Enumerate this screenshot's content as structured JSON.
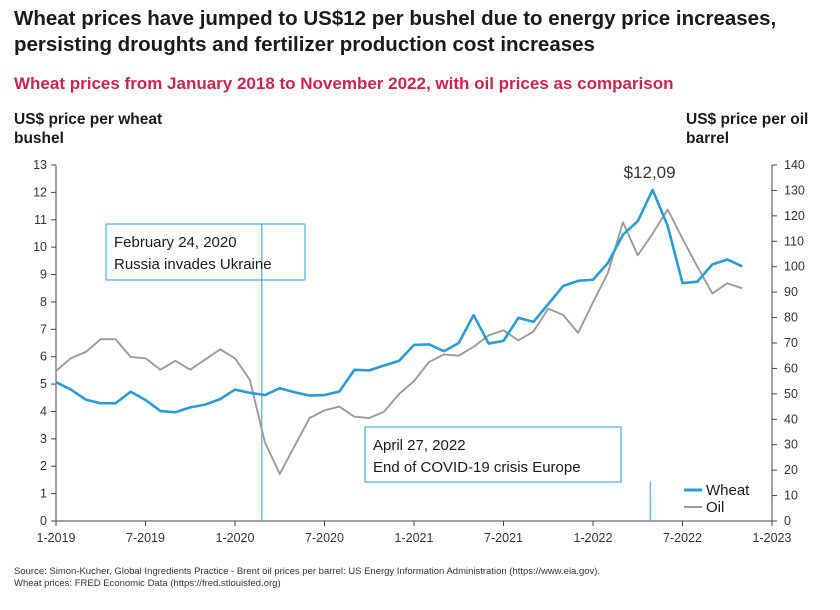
{
  "header": {
    "title": "Wheat prices have jumped to US$12 per bushel due to energy price increases, persisting droughts and fertilizer production cost increases",
    "subtitle": "Wheat prices from January 2018 to November 2022, with oil prices as comparison"
  },
  "chart_data": {
    "type": "line",
    "title": "Wheat prices from January 2018 to November 2022, with oil prices as comparison",
    "ylabel_left": "US$ price per wheat bushel",
    "ylabel_right": "US$ price per oil barrel",
    "x_ticks": [
      "1-2019",
      "7-2019",
      "1-2020",
      "7-2020",
      "1-2021",
      "7-2021",
      "1-2022",
      "7-2022",
      "1-2023"
    ],
    "ylim_left": [
      0,
      13
    ],
    "ylim_right": [
      0,
      140
    ],
    "y_ticks_left": [
      "0",
      "1",
      "2",
      "3",
      "4",
      "5",
      "6",
      "7",
      "8",
      "9",
      "10",
      "11",
      "12",
      "13"
    ],
    "y_ticks_right": [
      "0",
      "10",
      "20",
      "30",
      "40",
      "50",
      "60",
      "70",
      "80",
      "90",
      "100",
      "110",
      "120",
      "130",
      "140"
    ],
    "series": [
      {
        "name": "Wheat",
        "axis": "left",
        "color": "#2b9bd5",
        "points": [
          [
            2019.0,
            5.07
          ],
          [
            2019.083,
            4.8
          ],
          [
            2019.167,
            4.43
          ],
          [
            2019.25,
            4.3
          ],
          [
            2019.333,
            4.3
          ],
          [
            2019.417,
            4.72
          ],
          [
            2019.5,
            4.42
          ],
          [
            2019.583,
            4.02
          ],
          [
            2019.667,
            3.97
          ],
          [
            2019.75,
            4.15
          ],
          [
            2019.833,
            4.25
          ],
          [
            2019.917,
            4.45
          ],
          [
            2020.0,
            4.8
          ],
          [
            2020.083,
            4.68
          ],
          [
            2020.167,
            4.6
          ],
          [
            2020.25,
            4.85
          ],
          [
            2020.333,
            4.7
          ],
          [
            2020.417,
            4.58
          ],
          [
            2020.5,
            4.6
          ],
          [
            2020.583,
            4.73
          ],
          [
            2020.667,
            5.52
          ],
          [
            2020.75,
            5.5
          ],
          [
            2020.833,
            5.68
          ],
          [
            2020.917,
            5.85
          ],
          [
            2021.0,
            6.43
          ],
          [
            2021.083,
            6.45
          ],
          [
            2021.167,
            6.2
          ],
          [
            2021.25,
            6.5
          ],
          [
            2021.333,
            7.52
          ],
          [
            2021.417,
            6.48
          ],
          [
            2021.5,
            6.58
          ],
          [
            2021.583,
            7.42
          ],
          [
            2021.667,
            7.27
          ],
          [
            2021.75,
            7.92
          ],
          [
            2021.833,
            8.58
          ],
          [
            2021.917,
            8.77
          ],
          [
            2022.0,
            8.81
          ],
          [
            2022.083,
            9.42
          ],
          [
            2022.167,
            10.45
          ],
          [
            2022.25,
            10.95
          ],
          [
            2022.333,
            12.09
          ],
          [
            2022.417,
            10.78
          ],
          [
            2022.5,
            8.69
          ],
          [
            2022.583,
            8.74
          ],
          [
            2022.667,
            9.37
          ],
          [
            2022.75,
            9.55
          ],
          [
            2022.833,
            9.3
          ]
        ]
      },
      {
        "name": "Oil",
        "axis": "right",
        "color": "#9b9b9b",
        "points": [
          [
            2019.0,
            59
          ],
          [
            2019.083,
            64
          ],
          [
            2019.167,
            66.5
          ],
          [
            2019.25,
            71.5
          ],
          [
            2019.333,
            71.5
          ],
          [
            2019.417,
            64.5
          ],
          [
            2019.5,
            64
          ],
          [
            2019.583,
            59.5
          ],
          [
            2019.667,
            63
          ],
          [
            2019.75,
            59.5
          ],
          [
            2019.833,
            63.5
          ],
          [
            2019.917,
            67.5
          ],
          [
            2020.0,
            64
          ],
          [
            2020.083,
            55.5
          ],
          [
            2020.167,
            31
          ],
          [
            2020.25,
            18.5
          ],
          [
            2020.333,
            29.5
          ],
          [
            2020.417,
            40.5
          ],
          [
            2020.5,
            43.5
          ],
          [
            2020.583,
            45
          ],
          [
            2020.667,
            41
          ],
          [
            2020.75,
            40.5
          ],
          [
            2020.833,
            43
          ],
          [
            2020.917,
            50
          ],
          [
            2021.0,
            55
          ],
          [
            2021.083,
            62.5
          ],
          [
            2021.167,
            65.5
          ],
          [
            2021.25,
            65
          ],
          [
            2021.333,
            68.5
          ],
          [
            2021.417,
            73
          ],
          [
            2021.5,
            75
          ],
          [
            2021.583,
            71
          ],
          [
            2021.667,
            74.5
          ],
          [
            2021.75,
            83.5
          ],
          [
            2021.833,
            81
          ],
          [
            2021.917,
            74
          ],
          [
            2022.0,
            86
          ],
          [
            2022.083,
            97.5
          ],
          [
            2022.167,
            117.5
          ],
          [
            2022.25,
            104.5
          ],
          [
            2022.333,
            113
          ],
          [
            2022.417,
            122.5
          ],
          [
            2022.5,
            111
          ],
          [
            2022.583,
            100
          ],
          [
            2022.667,
            89.5
          ],
          [
            2022.75,
            93.5
          ],
          [
            2022.833,
            91.5
          ]
        ]
      }
    ],
    "annotations": [
      {
        "date": 2020.15,
        "line1": "February 24, 2020",
        "line2": "Russia invades Ukraine"
      },
      {
        "date": 2022.32,
        "line1": "April 27, 2022",
        "line2": "End of COVID-19 crisis Europe"
      }
    ],
    "peak_label": "$12,09",
    "legend": [
      "Wheat",
      "Oil"
    ],
    "legend_position": "bottom-right",
    "grid": false
  },
  "footer": {
    "source_line1": "Source: Simon-Kucher, Global Ingredients Practice - Brent oil prices per barrel: US Energy Information Administration (https://www.eia.gov).",
    "source_line2": "Wheat prices: FRED Economic Data (https://fred.stlouisfed.org)"
  }
}
